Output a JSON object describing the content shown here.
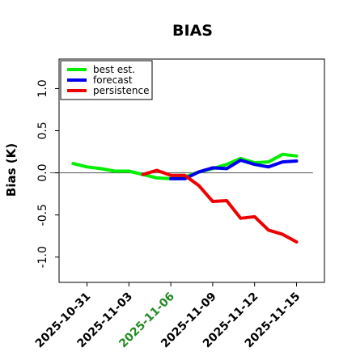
{
  "chart_data": {
    "type": "line",
    "title": "BIAS",
    "xlabel": "",
    "ylabel": "Bias (K)",
    "ylim": [
      -1.3,
      1.35
    ],
    "xlim": [
      "2025-10-29",
      "2025-11-17"
    ],
    "yticks": [
      -1.0,
      -0.5,
      0.0,
      0.5,
      1.0
    ],
    "ytick_labels": [
      "-1.0",
      "-0.5",
      "0.0",
      "0.5",
      "1.0"
    ],
    "xticks": [
      "2025-10-31",
      "2025-11-03",
      "2025-11-06",
      "2025-11-09",
      "2025-11-12",
      "2025-11-15"
    ],
    "xtick_labels": [
      "2025-10-31",
      "2025-11-03",
      "2025-11-06",
      "2025-11-09",
      "2025-11-12",
      "2025-11-15"
    ],
    "highlighted_xtick": "2025-11-06",
    "highlight_color": "#228b22",
    "reference_line_y": 0,
    "grid": false,
    "legend_position": "top-left",
    "series": [
      {
        "name": "best est.",
        "color": "#00ee00",
        "x": [
          "2025-10-30",
          "2025-10-31",
          "2025-11-01",
          "2025-11-02",
          "2025-11-03",
          "2025-11-04",
          "2025-11-05",
          "2025-11-06",
          "2025-11-07",
          "2025-11-08",
          "2025-11-09",
          "2025-11-10",
          "2025-11-11",
          "2025-11-12",
          "2025-11-13",
          "2025-11-14",
          "2025-11-15"
        ],
        "y": [
          0.11,
          0.07,
          0.05,
          0.02,
          0.02,
          -0.02,
          -0.06,
          -0.07,
          -0.05,
          0.01,
          0.05,
          0.1,
          0.17,
          0.12,
          0.13,
          0.22,
          0.2
        ]
      },
      {
        "name": "forecast",
        "color": "#0000ee",
        "x": [
          "2025-11-06",
          "2025-11-07",
          "2025-11-08",
          "2025-11-09",
          "2025-11-10",
          "2025-11-11",
          "2025-11-12",
          "2025-11-13",
          "2025-11-14",
          "2025-11-15"
        ],
        "y": [
          -0.07,
          -0.07,
          0.01,
          0.06,
          0.05,
          0.15,
          0.1,
          0.07,
          0.13,
          0.14
        ]
      },
      {
        "name": "persistence",
        "color": "#ee0000",
        "x": [
          "2025-11-04",
          "2025-11-05",
          "2025-11-06",
          "2025-11-07",
          "2025-11-08",
          "2025-11-09",
          "2025-11-10",
          "2025-11-11",
          "2025-11-12",
          "2025-11-13",
          "2025-11-14",
          "2025-11-15"
        ],
        "y": [
          -0.02,
          0.03,
          -0.03,
          -0.03,
          -0.15,
          -0.34,
          -0.33,
          -0.54,
          -0.52,
          -0.68,
          -0.73,
          -0.82
        ]
      }
    ]
  }
}
